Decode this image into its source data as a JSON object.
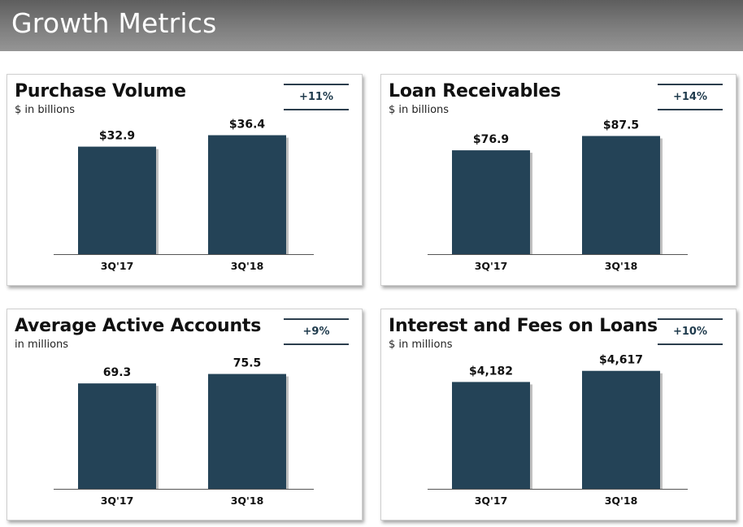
{
  "header": {
    "title": "Growth Metrics"
  },
  "colors": {
    "bar": "#244357",
    "badge": "#1e3a4c"
  },
  "chart_data": [
    {
      "type": "bar",
      "title": "Purchase Volume",
      "subtitle": "$ in billions",
      "badge": "+11%",
      "categories": [
        "3Q'17",
        "3Q'18"
      ],
      "values": [
        32.9,
        36.4
      ],
      "value_labels": [
        "$32.9",
        "$36.4"
      ],
      "ylim": [
        0,
        40.5
      ]
    },
    {
      "type": "bar",
      "title": "Loan Receivables",
      "subtitle": "$ in billions",
      "badge": "+14%",
      "categories": [
        "3Q'17",
        "3Q'18"
      ],
      "values": [
        76.9,
        87.5
      ],
      "value_labels": [
        "$76.9",
        "$87.5"
      ],
      "ylim": [
        0,
        98
      ]
    },
    {
      "type": "bar",
      "title": "Average Active Accounts",
      "subtitle": "in millions",
      "badge": "+9%",
      "categories": [
        "3Q'17",
        "3Q'18"
      ],
      "values": [
        69.3,
        75.5
      ],
      "value_labels": [
        "69.3",
        "75.5"
      ],
      "ylim": [
        0,
        87
      ]
    },
    {
      "type": "bar",
      "title": "Interest and Fees on Loans",
      "subtitle": "$ in millions",
      "badge": "+10%",
      "categories": [
        "3Q'17",
        "3Q'18"
      ],
      "values": [
        4182,
        4617
      ],
      "value_labels": [
        "$4,182",
        "$4,617"
      ],
      "ylim": [
        0,
        5180
      ]
    }
  ]
}
